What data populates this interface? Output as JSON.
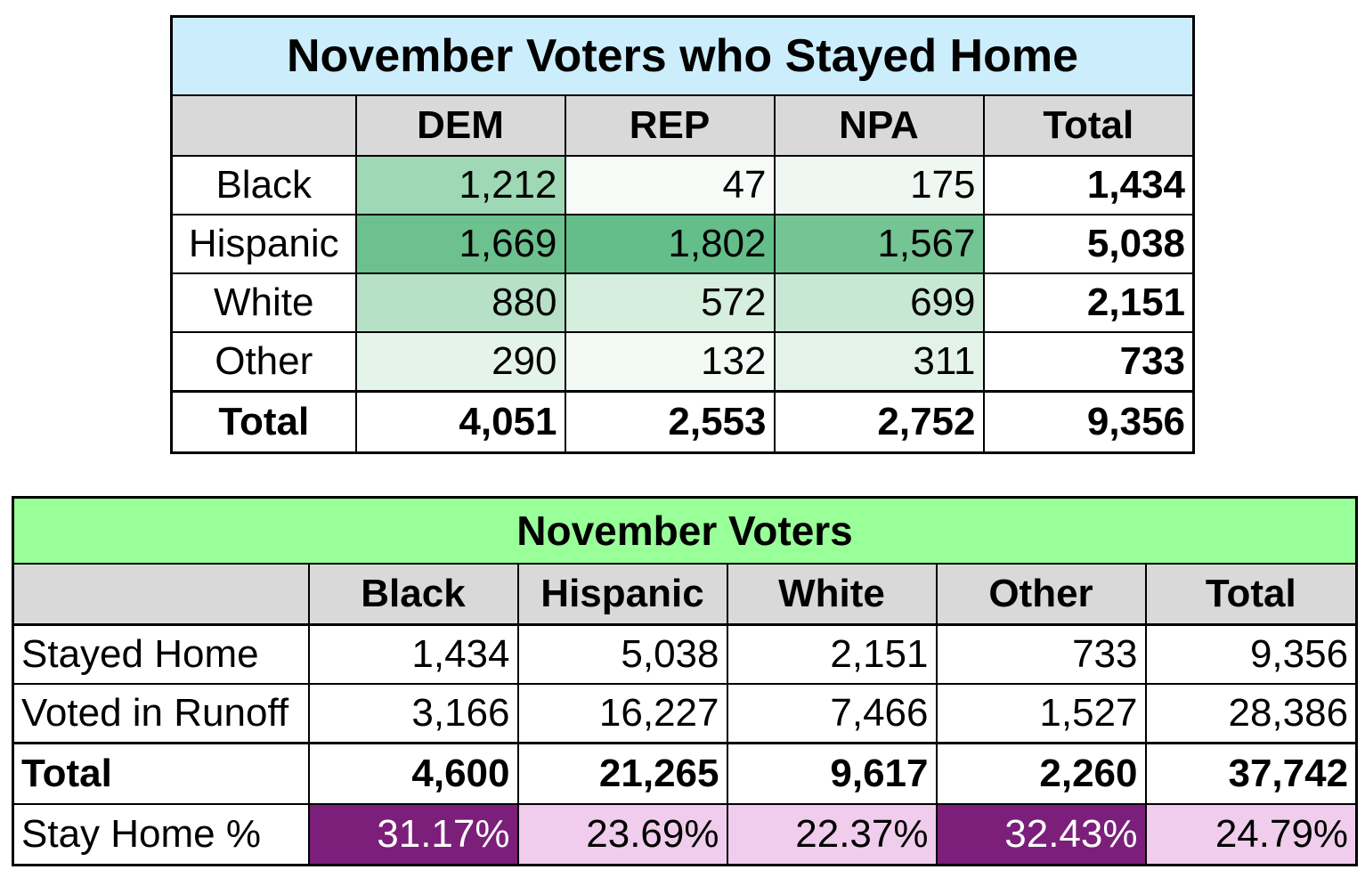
{
  "table1": {
    "title": "November Voters who Stayed Home",
    "columns": [
      "",
      "DEM",
      "REP",
      "NPA",
      "Total"
    ],
    "rows": [
      {
        "label": "Black",
        "dem": "1,212",
        "rep": "47",
        "npa": "175",
        "total": "1,434",
        "colors": [
          "#9fd8b4",
          "#f7fbf8",
          "#eef7f1"
        ]
      },
      {
        "label": "Hispanic",
        "dem": "1,669",
        "rep": "1,802",
        "npa": "1,567",
        "total": "5,038",
        "colors": [
          "#6cc18e",
          "#63be8a",
          "#74c494"
        ]
      },
      {
        "label": "White",
        "dem": "880",
        "rep": "572",
        "npa": "699",
        "total": "2,151",
        "colors": [
          "#b6e1c6",
          "#d5eedd",
          "#c8e8d3"
        ]
      },
      {
        "label": "Other",
        "dem": "290",
        "rep": "132",
        "npa": "311",
        "total": "733",
        "colors": [
          "#e5f4ea",
          "#f3faf5",
          "#e3f3e9"
        ]
      }
    ],
    "total_row": {
      "label": "Total",
      "dem": "4,051",
      "rep": "2,553",
      "npa": "2,752",
      "total": "9,356"
    }
  },
  "table2": {
    "title": "November Voters",
    "columns": [
      "",
      "Black",
      "Hispanic",
      "White",
      "Other",
      "Total"
    ],
    "rows": [
      {
        "label": "Stayed Home",
        "values": [
          "1,434",
          "5,038",
          "2,151",
          "733",
          "9,356"
        ]
      },
      {
        "label": "Voted in Runoff",
        "values": [
          "3,166",
          "16,227",
          "7,466",
          "1,527",
          "28,386"
        ]
      }
    ],
    "total_row": {
      "label": "Total",
      "values": [
        "4,600",
        "21,265",
        "9,617",
        "2,260",
        "37,742"
      ]
    },
    "pct_row": {
      "label": "Stay Home %",
      "values": [
        "31.17%",
        "23.69%",
        "22.37%",
        "32.43%",
        "24.79%"
      ],
      "highlight": [
        "high",
        "low",
        "low",
        "high",
        "low"
      ]
    }
  }
}
